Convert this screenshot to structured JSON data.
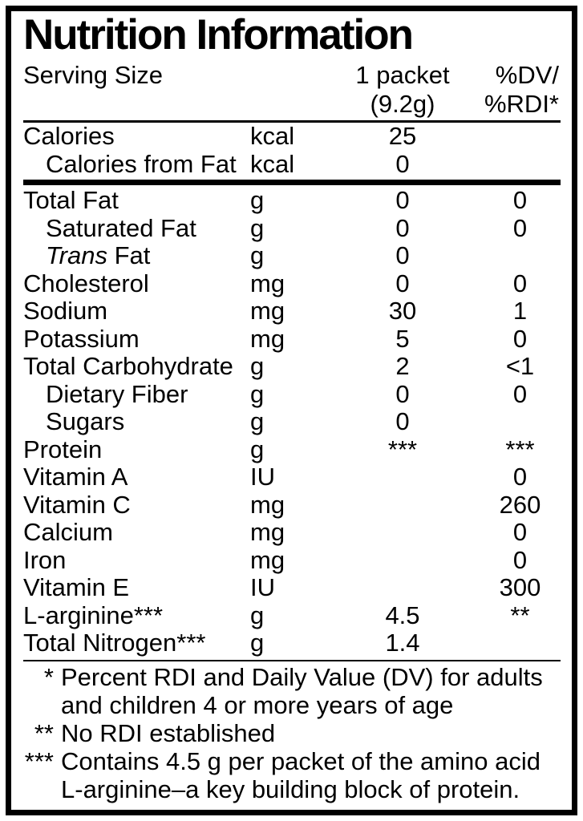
{
  "colors": {
    "ink": "#000000",
    "background": "#ffffff"
  },
  "label": {
    "title": "Nutrition Information",
    "header": {
      "serving_size_label": "Serving Size",
      "serving_line1": "1 packet",
      "serving_line2": "(9.2g)",
      "dv_line1": "%DV/",
      "dv_line2": "%RDI*"
    },
    "rows": [
      {
        "label": "Calories",
        "unit": "kcal",
        "amount": "25",
        "dv": ""
      },
      {
        "label": "Calories from Fat",
        "indent": true,
        "unit": "kcal",
        "amount": "0",
        "dv": "",
        "thick_rule_after": true
      },
      {
        "label": "Total Fat",
        "unit": "g",
        "amount": "0",
        "dv": "0"
      },
      {
        "label": "Saturated Fat",
        "indent": true,
        "unit": "g",
        "amount": "0",
        "dv": "0"
      },
      {
        "label_italic": "Trans",
        "label": " Fat",
        "indent": true,
        "unit": "g",
        "amount": "0",
        "dv": ""
      },
      {
        "label": "Cholesterol",
        "unit": "mg",
        "amount": "0",
        "dv": "0"
      },
      {
        "label": "Sodium",
        "unit": "mg",
        "amount": "30",
        "dv": "1"
      },
      {
        "label": "Potassium",
        "unit": "mg",
        "amount": "5",
        "dv": "0"
      },
      {
        "label": "Total Carbohydrate",
        "unit": "g",
        "amount": "2",
        "dv": "<1"
      },
      {
        "label": "Dietary Fiber",
        "indent": true,
        "unit": "g",
        "amount": "0",
        "dv": "0"
      },
      {
        "label": "Sugars",
        "indent": true,
        "unit": "g",
        "amount": "0",
        "dv": ""
      },
      {
        "label": "Protein",
        "unit": "g",
        "amount": "***",
        "dv": "***"
      },
      {
        "label": "Vitamin A",
        "unit": "IU",
        "amount": "",
        "dv": "0"
      },
      {
        "label": "Vitamin C",
        "unit": "mg",
        "amount": "",
        "dv": "260"
      },
      {
        "label": "Calcium",
        "unit": "mg",
        "amount": "",
        "dv": "0"
      },
      {
        "label": "Iron",
        "unit": "mg",
        "amount": "",
        "dv": "0"
      },
      {
        "label": "Vitamin E",
        "unit": "IU",
        "amount": "",
        "dv": "300"
      },
      {
        "label": "L-arginine***",
        "unit": "g",
        "amount": "4.5",
        "dv": "**"
      },
      {
        "label": "Total Nitrogen***",
        "unit": "g",
        "amount": "1.4",
        "dv": ""
      }
    ],
    "footnotes": [
      {
        "marker": "*",
        "text": "Percent RDI and Daily Value (DV) for adults and children 4 or more years of age"
      },
      {
        "marker": "**",
        "text": "No RDI established"
      },
      {
        "marker": "***",
        "text": "Contains 4.5 g per packet of the amino acid L-arginine–a key building block of protein."
      }
    ]
  }
}
